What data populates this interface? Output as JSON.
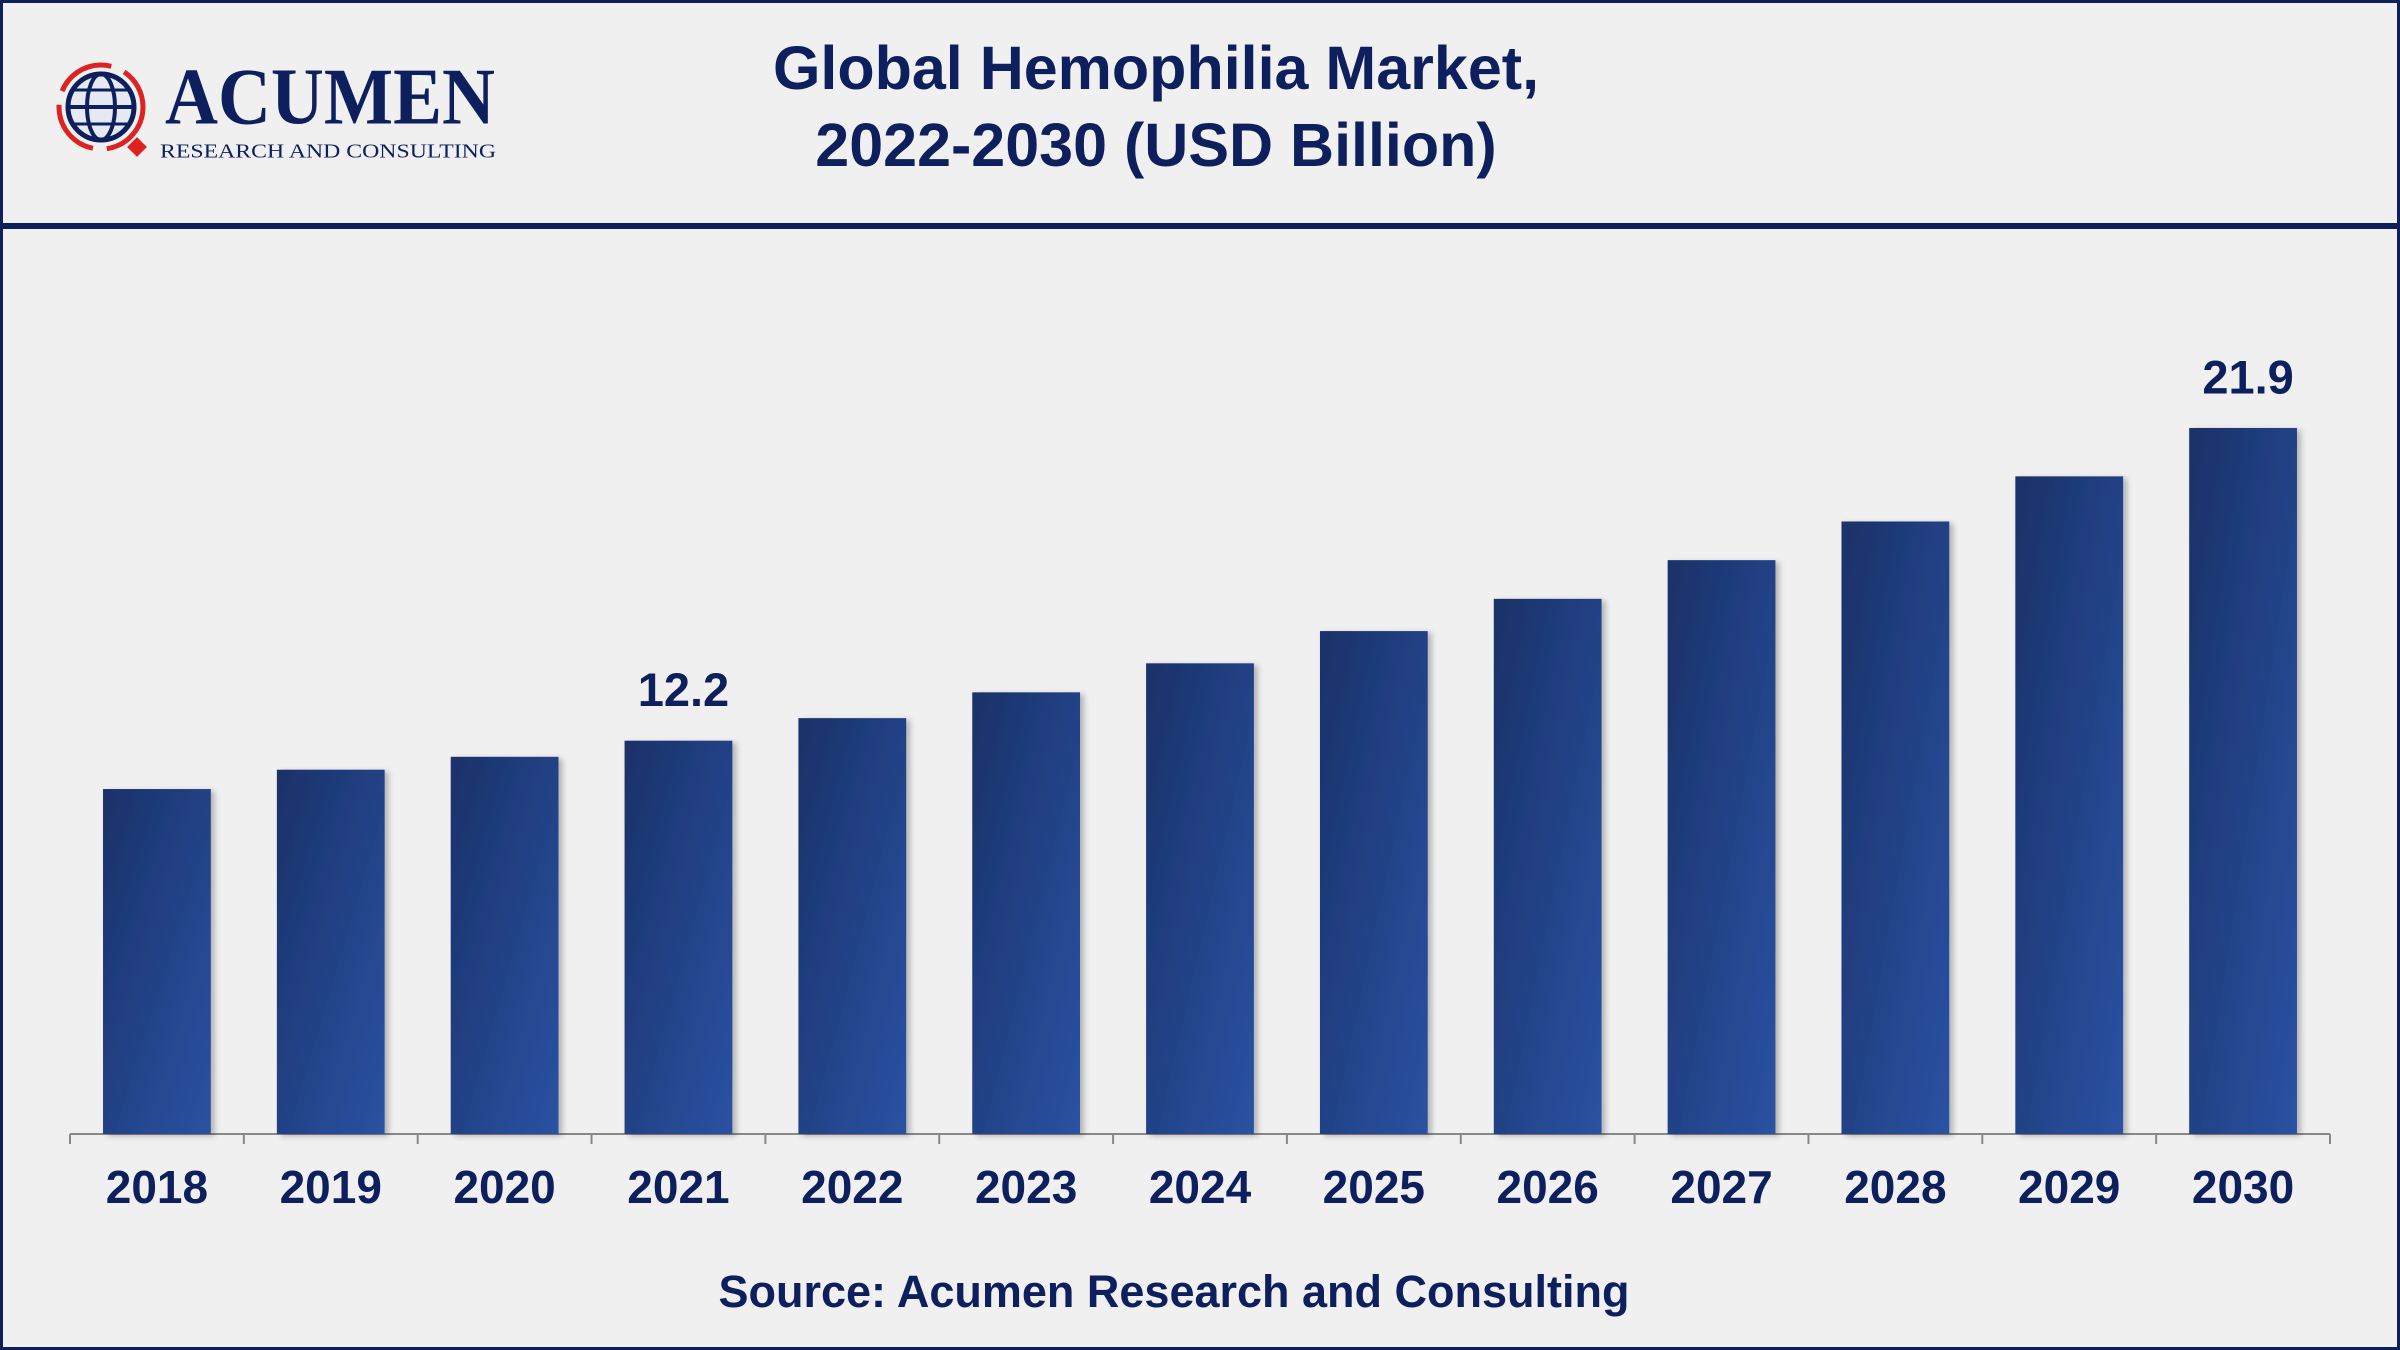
{
  "logo": {
    "name": "ACUMEN",
    "tagline": "RESEARCH AND CONSULTING"
  },
  "chart_data": {
    "type": "bar",
    "title": [
      "Global Hemophilia Market,",
      "2022-2030 (USD Billion)"
    ],
    "source": "Source: Acumen Research and Consulting",
    "categories": [
      "2018",
      "2019",
      "2020",
      "2021",
      "2022",
      "2023",
      "2024",
      "2025",
      "2026",
      "2027",
      "2028",
      "2029",
      "2030"
    ],
    "values": [
      10.7,
      11.3,
      11.7,
      12.2,
      12.9,
      13.7,
      14.6,
      15.6,
      16.6,
      17.8,
      19.0,
      20.4,
      21.9
    ],
    "value_labels": [
      null,
      null,
      null,
      "12.2",
      null,
      null,
      null,
      null,
      null,
      null,
      null,
      null,
      "21.9"
    ],
    "color": "#22428c",
    "ylim": [
      0,
      27.7
    ],
    "grid": false
  }
}
